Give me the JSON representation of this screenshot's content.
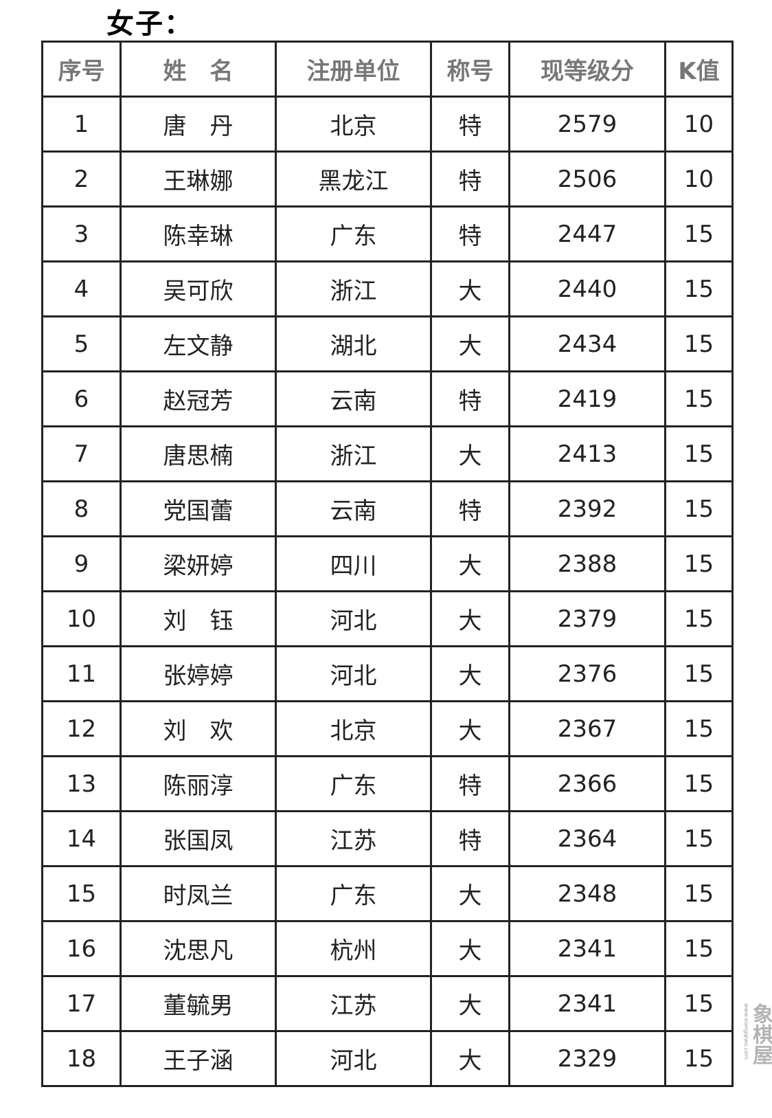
{
  "title": "女子：",
  "table": {
    "headers": [
      "序号",
      "姓　名",
      "注册单位",
      "称号",
      "现等级分",
      "K值"
    ],
    "rows": [
      [
        "1",
        "唐　丹",
        "北京",
        "特",
        "2579",
        "10"
      ],
      [
        "2",
        "王琳娜",
        "黑龙江",
        "特",
        "2506",
        "10"
      ],
      [
        "3",
        "陈幸琳",
        "广东",
        "特",
        "2447",
        "15"
      ],
      [
        "4",
        "吴可欣",
        "浙江",
        "大",
        "2440",
        "15"
      ],
      [
        "5",
        "左文静",
        "湖北",
        "大",
        "2434",
        "15"
      ],
      [
        "6",
        "赵冠芳",
        "云南",
        "特",
        "2419",
        "15"
      ],
      [
        "7",
        "唐思楠",
        "浙江",
        "大",
        "2413",
        "15"
      ],
      [
        "8",
        "党国蕾",
        "云南",
        "特",
        "2392",
        "15"
      ],
      [
        "9",
        "梁妍婷",
        "四川",
        "大",
        "2388",
        "15"
      ],
      [
        "10",
        "刘　钰",
        "河北",
        "大",
        "2379",
        "15"
      ],
      [
        "11",
        "张婷婷",
        "河北",
        "大",
        "2376",
        "15"
      ],
      [
        "12",
        "刘　欢",
        "北京",
        "大",
        "2367",
        "15"
      ],
      [
        "13",
        "陈丽淳",
        "广东",
        "特",
        "2366",
        "15"
      ],
      [
        "14",
        "张国凤",
        "江苏",
        "特",
        "2364",
        "15"
      ],
      [
        "15",
        "时凤兰",
        "广东",
        "大",
        "2348",
        "15"
      ],
      [
        "16",
        "沈思凡",
        "杭州",
        "大",
        "2341",
        "15"
      ],
      [
        "17",
        "董毓男",
        "江苏",
        "大",
        "2341",
        "15"
      ],
      [
        "18",
        "王子涵",
        "河北",
        "大",
        "2329",
        "15"
      ]
    ]
  },
  "watermark": {
    "text": "象棋屋",
    "sub": "www.xiangqiwu.com"
  }
}
